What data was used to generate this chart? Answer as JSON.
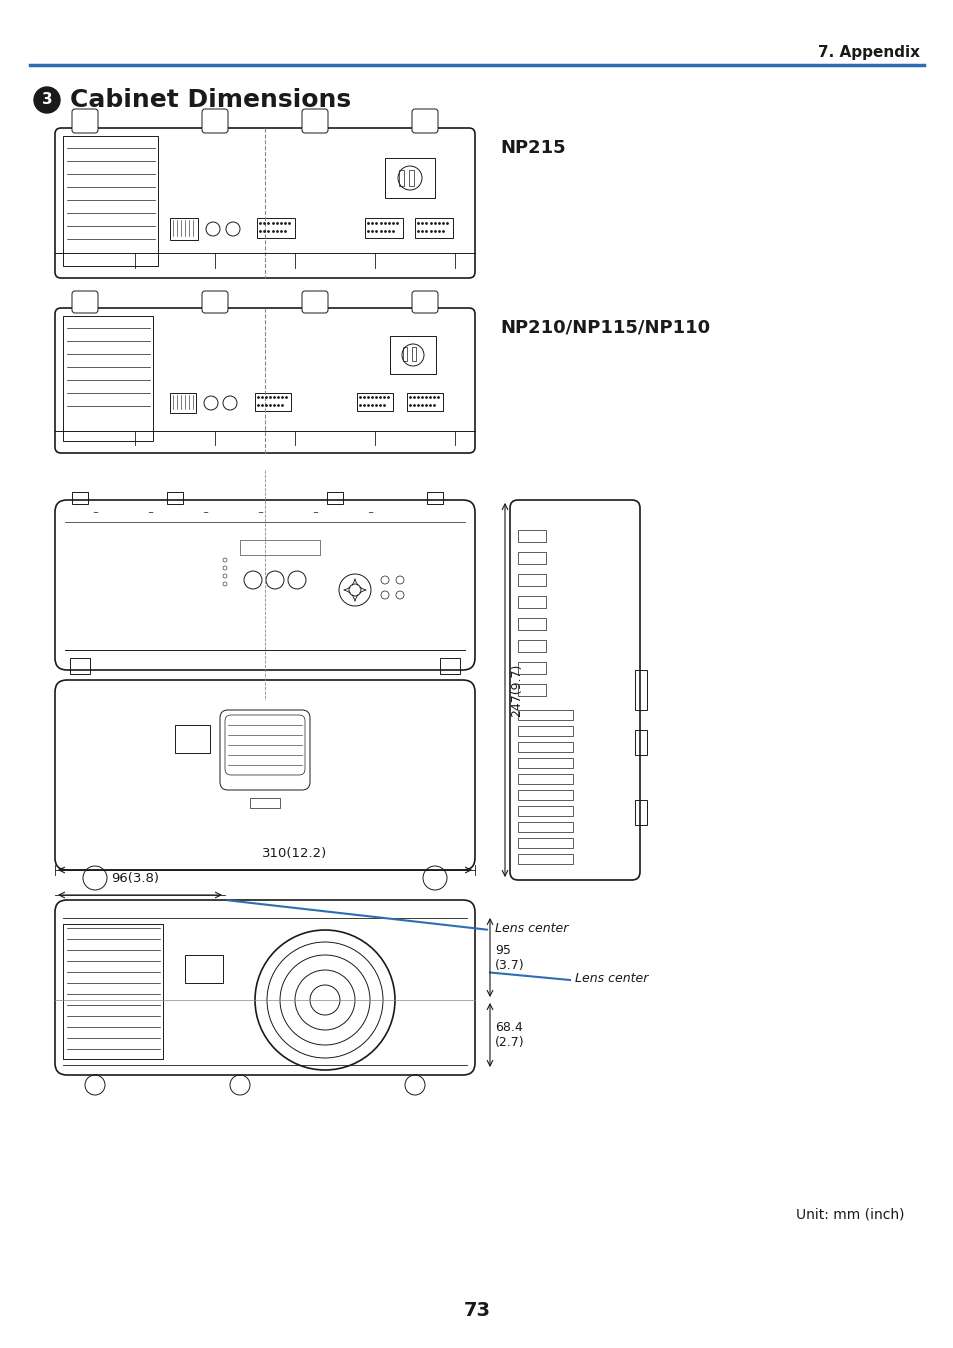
{
  "page_title": "7. Appendix",
  "section_number": "3",
  "section_title": "Cabinet Dimensions",
  "model1": "NP215",
  "model2": "NP210/NP115/NP110",
  "dim_width": "310(12.2)",
  "dim_lens_offset": "96(3.8)",
  "dim_height": "247(9.7)",
  "dim_lens_v1": "95\n(3.7)",
  "dim_lens_v2": "68.4\n(2.7)",
  "lens_center_label": "Lens center",
  "unit_label": "Unit: mm (inch)",
  "page_number": "73",
  "header_line_color": "#2e6db4",
  "bg_color": "#ffffff",
  "text_color": "#1a1a1a",
  "annotation_color": "#2e6db4",
  "drawing_color": "#1a1a1a"
}
